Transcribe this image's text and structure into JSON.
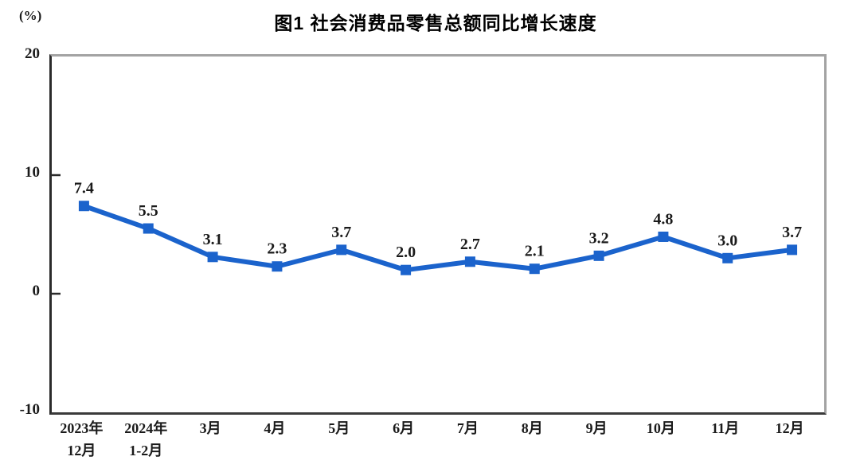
{
  "chart": {
    "title": "图1 社会消费品零售总额同比增长速度",
    "unit_label": "(%)"
  },
  "chart_data": {
    "type": "line",
    "title": "图1 社会消费品零售总额同比增长速度",
    "ylabel": "(%)",
    "categories": [
      "2023年\n12月",
      "2024年\n1-2月",
      "3月",
      "4月",
      "5月",
      "6月",
      "7月",
      "8月",
      "9月",
      "10月",
      "11月",
      "12月"
    ],
    "values": [
      7.4,
      5.5,
      3.1,
      2.3,
      3.7,
      2.0,
      2.7,
      2.1,
      3.2,
      4.8,
      3.0,
      3.7
    ],
    "data_labels": [
      "7.4",
      "5.5",
      "3.1",
      "2.3",
      "3.7",
      "2.0",
      "2.7",
      "2.1",
      "3.2",
      "4.8",
      "3.0",
      "3.7"
    ],
    "ylim": [
      -10,
      20
    ],
    "yticks": [
      20,
      10,
      0,
      -10
    ],
    "grid": false,
    "legend": false,
    "line_color": "#1b63cc",
    "marker": "square",
    "label_color": "#1a1a1a",
    "axis_color": "#2b2b2b"
  }
}
